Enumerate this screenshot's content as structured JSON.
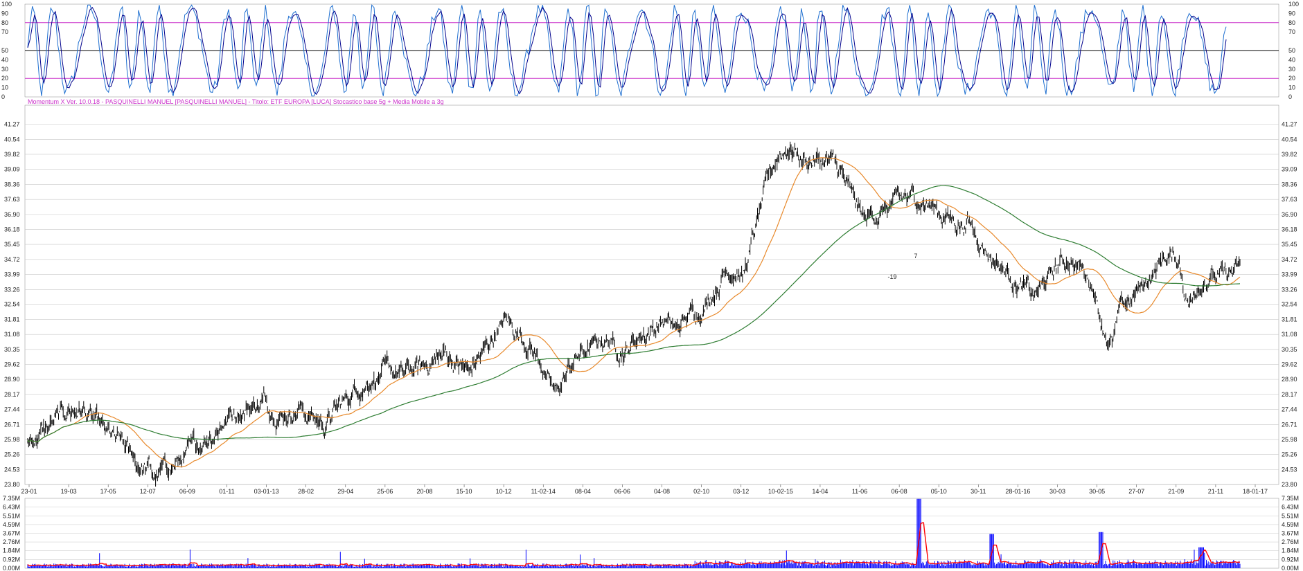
{
  "header": {
    "info_text": "Momentum X  Ver. 10.0.18  -  PASQUINELLI MANUEL  [PASQUINELLI MANUEL] - Titolo: ETF EUROPA  [LUCA]   Stocastico base 5g + Media Mobile a 3g"
  },
  "colors": {
    "background": "#ffffff",
    "grid": "#c8c8c8",
    "price": "#000000",
    "ma_fast": "#e8892b",
    "ma_slow": "#2e7d32",
    "stochastic_k": "#1e6fd0",
    "stochastic_d": "#00008b",
    "stochastic_levels": "#cc33cc",
    "stochastic_mid": "#000000",
    "volume_bars": "#0000ff",
    "volume_ma": "#ff0000",
    "date_red": "#ff0000",
    "date_normal": "#222222",
    "annotation": "#ff0000"
  },
  "chart_data": [
    {
      "type": "line",
      "panel": "stochastic",
      "y_ticks": [
        0,
        10,
        20,
        30,
        40,
        50,
        70,
        80,
        90,
        100
      ],
      "ylim": [
        0,
        100
      ],
      "levels": [
        {
          "value": 80,
          "color": "#cc33cc"
        },
        {
          "value": 50,
          "color": "#000000"
        },
        {
          "value": 20,
          "color": "#cc33cc"
        }
      ],
      "series": [
        {
          "role": "%K",
          "oscillating_between": [
            0,
            100
          ]
        },
        {
          "role": "%D (3g)",
          "oscillating_between": [
            0,
            100
          ]
        }
      ]
    },
    {
      "type": "line",
      "panel": "price",
      "ylim": [
        23.8,
        42.0
      ],
      "y_ticks": [
        "41.27",
        "40.54",
        "39.82",
        "39.09",
        "38.36",
        "37.63",
        "36.90",
        "36.18",
        "35.45",
        "34.72",
        "33.99",
        "33.26",
        "32.54",
        "31.81",
        "31.08",
        "30.35",
        "29.62",
        "28.90",
        "28.17",
        "27.44",
        "26.71",
        "25.98",
        "25.26",
        "24.53",
        "23.80"
      ],
      "x_labels": [
        {
          "label": "23-01",
          "red": false
        },
        {
          "label": "19-03",
          "red": false
        },
        {
          "label": "17-05",
          "red": false
        },
        {
          "label": "12-07",
          "red": false
        },
        {
          "label": "06-09",
          "red": false
        },
        {
          "label": "01-11",
          "red": false
        },
        {
          "label": "03-01-13",
          "red": true
        },
        {
          "label": "28-02",
          "red": false
        },
        {
          "label": "29-04",
          "red": false
        },
        {
          "label": "25-06",
          "red": false
        },
        {
          "label": "20-08",
          "red": false
        },
        {
          "label": "15-10",
          "red": false
        },
        {
          "label": "10-12",
          "red": false
        },
        {
          "label": "11-02-14",
          "red": true
        },
        {
          "label": "08-04",
          "red": false
        },
        {
          "label": "06-06",
          "red": false
        },
        {
          "label": "04-08",
          "red": false
        },
        {
          "label": "02-10",
          "red": false
        },
        {
          "label": "03-12",
          "red": false
        },
        {
          "label": "10-02-15",
          "red": true
        },
        {
          "label": "14-04",
          "red": false
        },
        {
          "label": "11-06",
          "red": false
        },
        {
          "label": "06-08",
          "red": false
        },
        {
          "label": "05-10",
          "red": false
        },
        {
          "label": "30-11",
          "red": false
        },
        {
          "label": "28-01-16",
          "red": true
        },
        {
          "label": "30-03",
          "red": false
        },
        {
          "label": "30-05",
          "red": false
        },
        {
          "label": "27-07",
          "red": false
        },
        {
          "label": "21-09",
          "red": false
        },
        {
          "label": "21-11",
          "red": false
        },
        {
          "label": "18-01-17",
          "red": true
        }
      ],
      "price_path": [
        [
          0,
          25.9
        ],
        [
          0.01,
          26.3
        ],
        [
          0.025,
          26.9
        ],
        [
          0.035,
          27.4
        ],
        [
          0.045,
          27.5
        ],
        [
          0.055,
          26.8
        ],
        [
          0.065,
          26.1
        ],
        [
          0.08,
          25.5
        ],
        [
          0.09,
          24.8
        ],
        [
          0.1,
          24.6
        ],
        [
          0.105,
          24.1
        ],
        [
          0.115,
          24.6
        ],
        [
          0.13,
          25.1
        ],
        [
          0.14,
          25.6
        ],
        [
          0.15,
          26.3
        ],
        [
          0.165,
          27.1
        ],
        [
          0.18,
          27.6
        ],
        [
          0.195,
          27.8
        ],
        [
          0.21,
          27.3
        ],
        [
          0.225,
          27.6
        ],
        [
          0.235,
          27.0
        ],
        [
          0.245,
          26.7
        ],
        [
          0.26,
          27.7
        ],
        [
          0.27,
          28.4
        ],
        [
          0.285,
          29.1
        ],
        [
          0.295,
          29.2
        ],
        [
          0.31,
          29.1
        ],
        [
          0.325,
          29.4
        ],
        [
          0.335,
          29.9
        ],
        [
          0.345,
          30.1
        ],
        [
          0.355,
          29.6
        ],
        [
          0.365,
          29.3
        ],
        [
          0.375,
          30.1
        ],
        [
          0.385,
          31.1
        ],
        [
          0.395,
          31.7
        ],
        [
          0.405,
          31.2
        ],
        [
          0.415,
          30.6
        ],
        [
          0.425,
          29.6
        ],
        [
          0.43,
          28.6
        ],
        [
          0.435,
          28.1
        ],
        [
          0.445,
          29.2
        ],
        [
          0.455,
          30.1
        ],
        [
          0.465,
          30.4
        ],
        [
          0.475,
          30.9
        ],
        [
          0.485,
          30.5
        ],
        [
          0.495,
          30.4
        ],
        [
          0.505,
          31.1
        ],
        [
          0.515,
          31.4
        ],
        [
          0.525,
          31.8
        ],
        [
          0.535,
          31.2
        ],
        [
          0.545,
          31.8
        ],
        [
          0.555,
          32.1
        ],
        [
          0.565,
          32.6
        ],
        [
          0.575,
          33.0
        ],
        [
          0.585,
          32.3
        ],
        [
          0.59,
          31.3
        ],
        [
          0.6,
          32.1
        ],
        [
          0.61,
          32.9
        ],
        [
          0.62,
          33.4
        ],
        [
          0.63,
          32.9
        ],
        [
          0.64,
          32.2
        ],
        [
          0.65,
          32.6
        ],
        [
          0.66,
          33.4
        ],
        [
          0.67,
          33.9
        ],
        [
          0.68,
          33.3
        ],
        [
          0.69,
          32.7
        ],
        [
          0.7,
          33.4
        ],
        [
          0.71,
          33.7
        ],
        [
          0.72,
          34.1
        ],
        [
          0.735,
          34.7
        ],
        [
          0.75,
          34.9
        ],
        [
          0.765,
          35.2
        ],
        [
          0.775,
          35.6
        ],
        [
          0.785,
          35.2
        ],
        [
          0.795,
          34.6
        ],
        [
          0.805,
          34.1
        ],
        [
          0.815,
          33.6
        ],
        [
          0.825,
          33.1
        ],
        [
          0.83,
          32.8
        ],
        [
          0.84,
          33.6
        ],
        [
          0.85,
          34.4
        ],
        [
          0.86,
          34.8
        ],
        [
          0.87,
          34.2
        ],
        [
          0.88,
          33.4
        ],
        [
          0.885,
          32.0
        ],
        [
          0.89,
          31.1
        ],
        [
          0.895,
          30.6
        ],
        [
          0.9,
          31.9
        ],
        [
          0.91,
          32.8
        ],
        [
          0.92,
          33.3
        ],
        [
          0.93,
          34.3
        ],
        [
          0.94,
          34.9
        ],
        [
          0.95,
          34.6
        ],
        [
          0.955,
          33.1
        ],
        [
          0.96,
          32.6
        ],
        [
          0.965,
          33.6
        ],
        [
          0.975,
          34.1
        ],
        [
          0.985,
          33.8
        ],
        [
          1,
          34.2
        ]
      ],
      "annotations": [
        {
          "label": "-19",
          "color": "#ff0000"
        },
        {
          "label": "7",
          "color": "#ff0000"
        }
      ],
      "series": [
        {
          "role": "price",
          "color": "#000000"
        },
        {
          "role": "moving average (fast)",
          "color": "#e8892b"
        },
        {
          "role": "moving average (slow)",
          "color": "#2e7d32"
        }
      ]
    },
    {
      "type": "bar",
      "panel": "volume",
      "y_ticks": [
        "7.35M",
        "6.43M",
        "5.51M",
        "4.59M",
        "3.67M",
        "2.76M",
        "1.84M",
        "0.92M",
        "0.00M"
      ],
      "ylim": [
        0,
        7.35
      ],
      "series": [
        {
          "role": "volume",
          "color": "#0000ff"
        },
        {
          "role": "volume moving average",
          "color": "#ff0000"
        }
      ]
    }
  ]
}
